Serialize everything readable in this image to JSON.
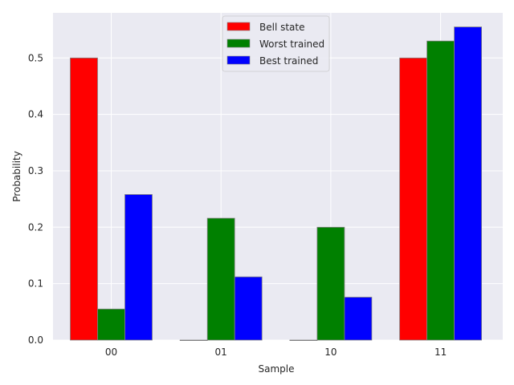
{
  "chart_data": {
    "type": "bar",
    "xlabel": "Sample",
    "ylabel": "Probability",
    "categories": [
      "00",
      "01",
      "10",
      "11"
    ],
    "series": [
      {
        "name": "Bell state",
        "color": "#ff0000",
        "values": [
          0.5,
          0.0,
          0.0,
          0.5
        ]
      },
      {
        "name": "Worst trained",
        "color": "#008000",
        "values": [
          0.055,
          0.216,
          0.2,
          0.53
        ]
      },
      {
        "name": "Best trained",
        "color": "#0000ff",
        "values": [
          0.258,
          0.112,
          0.076,
          0.555
        ]
      }
    ],
    "ylim": [
      0,
      0.58
    ],
    "yticks": [
      0.0,
      0.1,
      0.2,
      0.3,
      0.4,
      0.5
    ],
    "ytick_labels": [
      "0.0",
      "0.1",
      "0.2",
      "0.3",
      "0.4",
      "0.5"
    ],
    "grid": true,
    "legend_position": "top-center",
    "background": "#eaeaf2",
    "grid_color": "#ffffff",
    "bar_edge_color": "#808080"
  }
}
